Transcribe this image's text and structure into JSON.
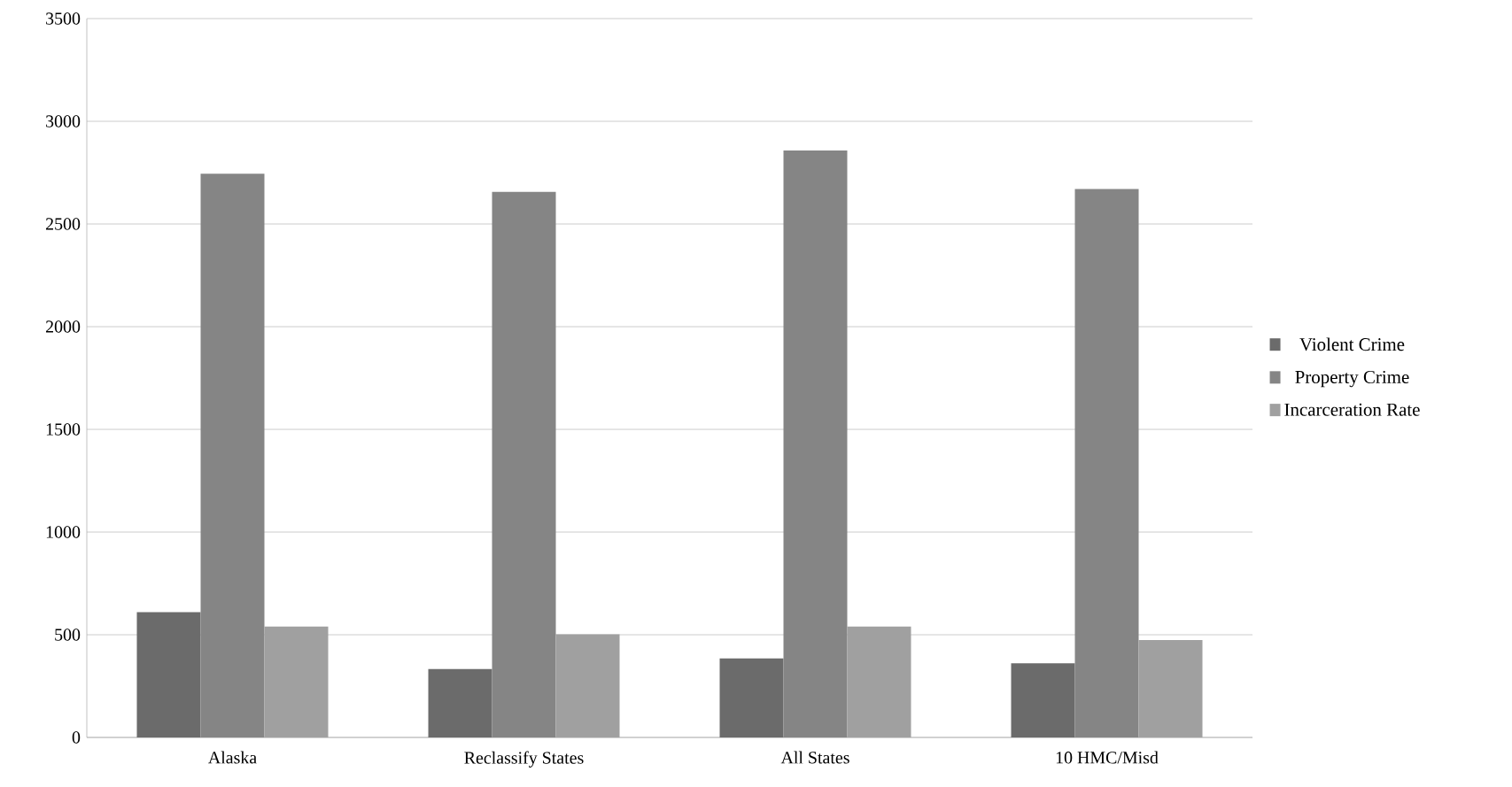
{
  "chart_data": {
    "type": "bar",
    "categories": [
      "Alaska",
      "Reclassify States",
      "All States",
      "10 HMC/Misd"
    ],
    "series": [
      {
        "name": "Violent Crime",
        "color": "#6b6b6b",
        "values": [
          610,
          333,
          385,
          361
        ]
      },
      {
        "name": "Property Crime",
        "color": "#858585",
        "values": [
          2745,
          2656,
          2858,
          2670
        ]
      },
      {
        "name": "Incarceration Rate",
        "color": "#a0a0a0",
        "values": [
          540,
          502,
          540,
          474
        ]
      }
    ],
    "ylim": [
      0,
      3500
    ],
    "yticks": [
      0,
      500,
      1000,
      1500,
      2000,
      2500,
      3000,
      3500
    ],
    "grid": "y",
    "legend": "right"
  }
}
